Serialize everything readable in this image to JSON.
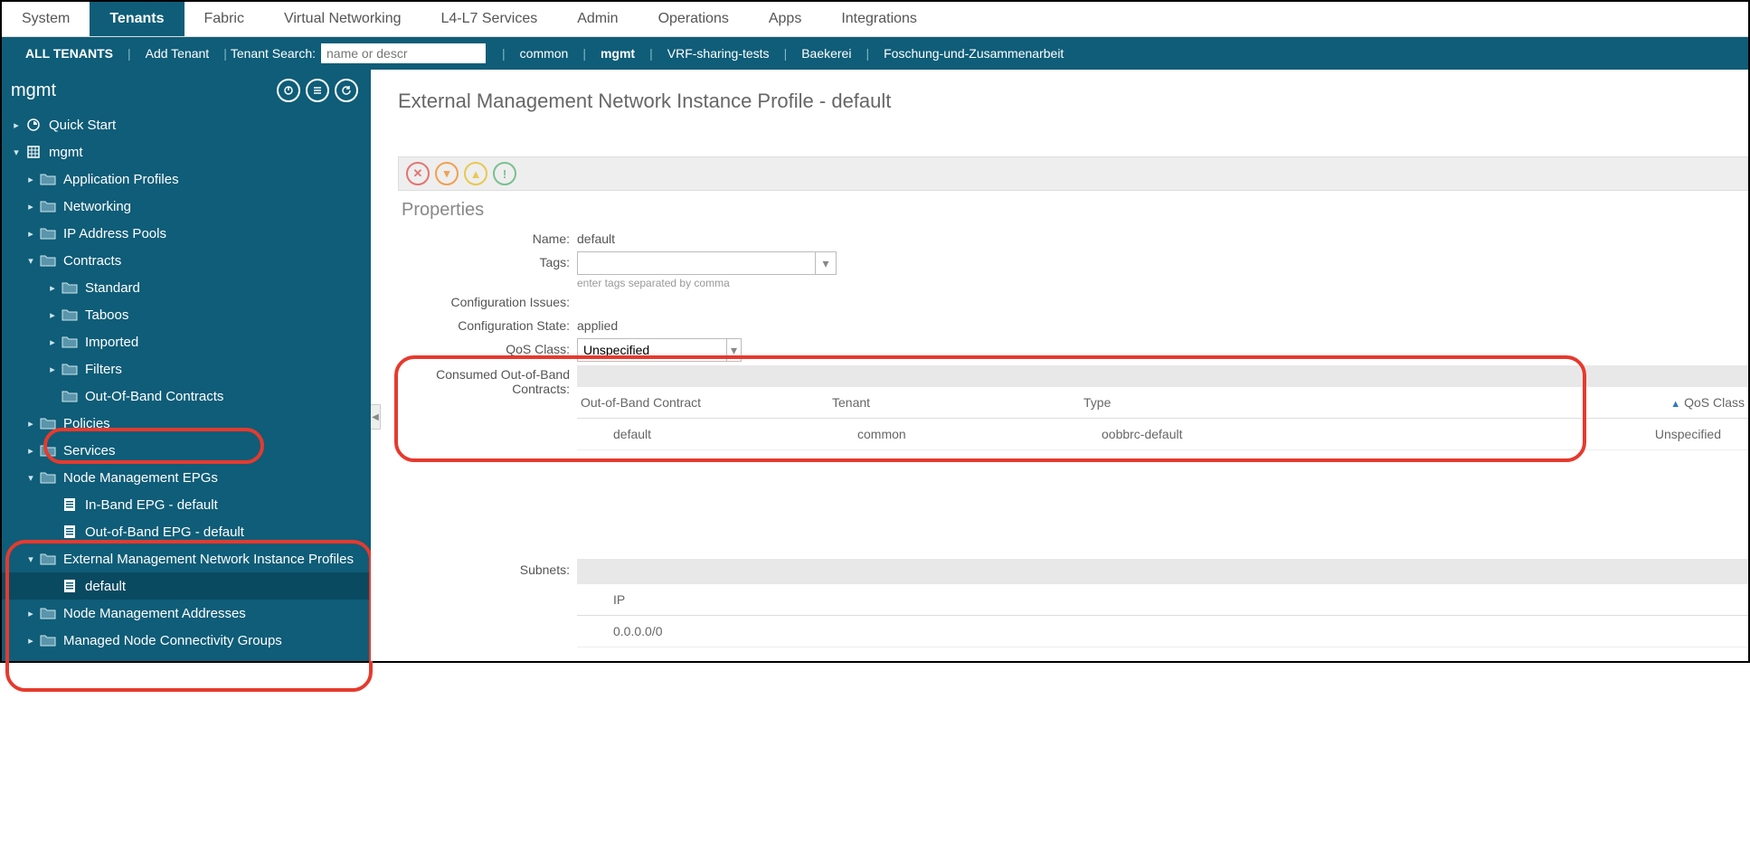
{
  "colors": {
    "primary": "#0f5d78",
    "primary_dark": "#0a4a61",
    "highlight": "#e63a2e",
    "text_muted": "#666"
  },
  "topnav": {
    "tabs": [
      "System",
      "Tenants",
      "Fabric",
      "Virtual Networking",
      "L4-L7 Services",
      "Admin",
      "Operations",
      "Apps",
      "Integrations"
    ],
    "active": "Tenants"
  },
  "subnav": {
    "all_tenants": "ALL TENANTS",
    "add_tenant": "Add Tenant",
    "search_label": "Tenant Search:",
    "search_placeholder": "name or descr",
    "tenants": [
      "common",
      "mgmt",
      "VRF-sharing-tests",
      "Baekerei",
      "Foschung-und-Zusammenarbeit"
    ],
    "active_tenant": "mgmt"
  },
  "sidebar": {
    "title": "mgmt",
    "tree": [
      {
        "d": 0,
        "exp": "closed",
        "icon": "quickstart",
        "label": "Quick Start"
      },
      {
        "d": 0,
        "exp": "open",
        "icon": "tenant",
        "label": "mgmt"
      },
      {
        "d": 1,
        "exp": "closed",
        "icon": "folder",
        "label": "Application Profiles"
      },
      {
        "d": 1,
        "exp": "closed",
        "icon": "folder",
        "label": "Networking"
      },
      {
        "d": 1,
        "exp": "closed",
        "icon": "folder",
        "label": "IP Address Pools"
      },
      {
        "d": 1,
        "exp": "open",
        "icon": "folder",
        "label": "Contracts"
      },
      {
        "d": 2,
        "exp": "closed",
        "icon": "folder",
        "label": "Standard"
      },
      {
        "d": 2,
        "exp": "closed",
        "icon": "folder",
        "label": "Taboos"
      },
      {
        "d": 2,
        "exp": "closed",
        "icon": "folder",
        "label": "Imported"
      },
      {
        "d": 2,
        "exp": "closed",
        "icon": "folder",
        "label": "Filters"
      },
      {
        "d": 2,
        "exp": "none",
        "icon": "folder",
        "label": "Out-Of-Band Contracts"
      },
      {
        "d": 1,
        "exp": "closed",
        "icon": "folder",
        "label": "Policies"
      },
      {
        "d": 1,
        "exp": "closed",
        "icon": "folder",
        "label": "Services"
      },
      {
        "d": 1,
        "exp": "open",
        "icon": "folder",
        "label": "Node Management EPGs"
      },
      {
        "d": 2,
        "exp": "none",
        "icon": "epg",
        "label": "In-Band EPG - default"
      },
      {
        "d": 2,
        "exp": "none",
        "icon": "epg",
        "label": "Out-of-Band EPG - default"
      },
      {
        "d": 1,
        "exp": "open",
        "icon": "folder",
        "label": "External Management Network Instance Profiles"
      },
      {
        "d": 2,
        "exp": "none",
        "icon": "epg",
        "label": "default",
        "selected": true
      },
      {
        "d": 1,
        "exp": "closed",
        "icon": "folder",
        "label": "Node Management Addresses"
      },
      {
        "d": 1,
        "exp": "closed",
        "icon": "folder",
        "label": "Managed Node Connectivity Groups"
      }
    ]
  },
  "content": {
    "title": "External Management Network Instance Profile - default",
    "properties_heading": "Properties",
    "fields": {
      "name_label": "Name:",
      "name_value": "default",
      "tags_label": "Tags:",
      "tags_hint": "enter tags separated by comma",
      "config_issues_label": "Configuration Issues:",
      "config_state_label": "Configuration State:",
      "config_state_value": "applied",
      "qos_label": "QoS Class:",
      "qos_value": "Unspecified",
      "contracts_label": "Consumed Out-of-Band Contracts:",
      "subnets_label": "Subnets:"
    },
    "contracts_table": {
      "headers": {
        "c1": "Out-of-Band Contract",
        "c2": "Tenant",
        "c3": "Type",
        "c4": "QoS Class"
      },
      "sort_col": "c4",
      "sort_dir": "asc",
      "rows": [
        {
          "c1": "default",
          "c2": "common",
          "c3": "oobbrc-default",
          "c4": "Unspecified"
        }
      ]
    },
    "subnets_table": {
      "header": "IP",
      "rows": [
        "0.0.0.0/0"
      ]
    }
  }
}
